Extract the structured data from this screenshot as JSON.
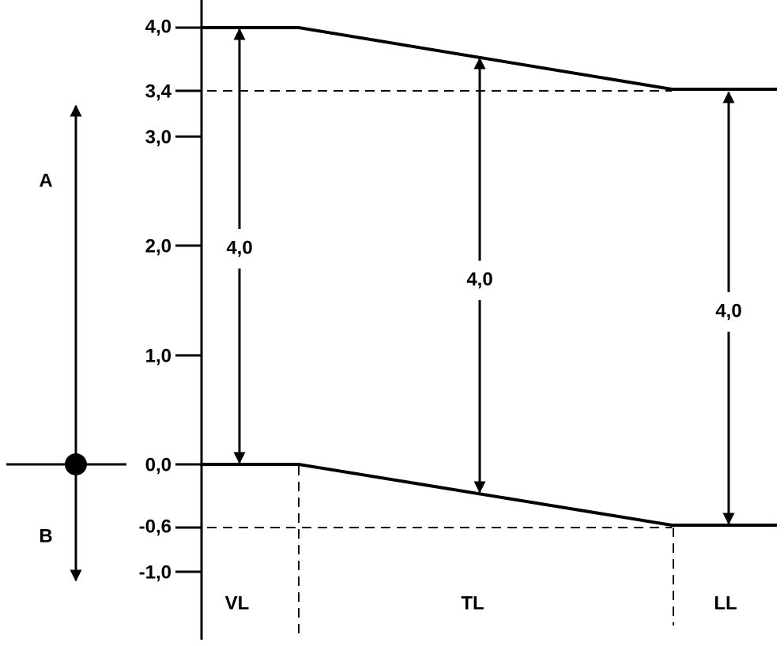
{
  "axis": {
    "ticks": [
      "4,0",
      "3,4",
      "3,0",
      "2,0",
      "1,0",
      "0,0",
      "-0,6",
      "-1,0"
    ]
  },
  "directions": {
    "up": "A",
    "down": "B"
  },
  "dimensions": [
    "4,0",
    "4,0",
    "4,0"
  ],
  "sections": [
    "VL",
    "TL",
    "LL"
  ]
}
